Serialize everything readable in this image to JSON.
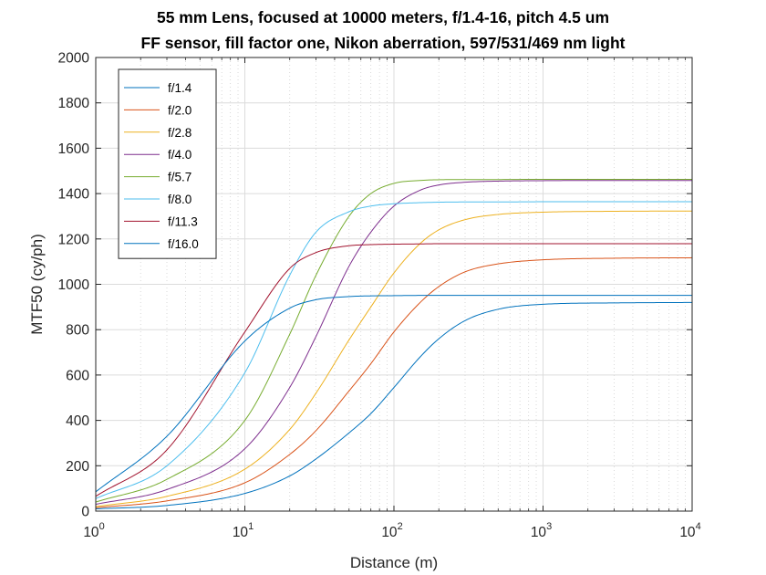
{
  "chart_data": {
    "type": "line",
    "title": "55 mm Lens, focused at 10000 meters, f/1.4-16, pitch 4.5 um",
    "subtitle": "FF sensor, fill factor one, Nikon aberration, 597/531/469 nm light",
    "xlabel": "Distance (m)",
    "ylabel": "MTF50 (cy/ph)",
    "x_scale": "log",
    "xlim": [
      1,
      10000
    ],
    "ylim": [
      0,
      2000
    ],
    "x_ticks": [
      {
        "base": "10",
        "exp": "0"
      },
      {
        "base": "10",
        "exp": "1"
      },
      {
        "base": "10",
        "exp": "2"
      },
      {
        "base": "10",
        "exp": "3"
      },
      {
        "base": "10",
        "exp": "4"
      }
    ],
    "y_ticks": [
      "0",
      "200",
      "400",
      "600",
      "800",
      "1000",
      "1200",
      "1400",
      "1600",
      "1800",
      "2000"
    ],
    "grid": true,
    "legend_position": "top-left",
    "series": [
      {
        "name": "f/1.4",
        "color": "#0072BD",
        "x": [
          1,
          3,
          10,
          20,
          30,
          50,
          70,
          100,
          150,
          200,
          300,
          500,
          1000,
          3000,
          10000
        ],
        "y": [
          10,
          25,
          78,
          155,
          230,
          345,
          430,
          545,
          680,
          760,
          840,
          890,
          912,
          918,
          920
        ]
      },
      {
        "name": "f/2.0",
        "color": "#D95319",
        "x": [
          1,
          3,
          10,
          20,
          30,
          50,
          70,
          100,
          150,
          200,
          300,
          500,
          1000,
          3000,
          10000
        ],
        "y": [
          15,
          45,
          125,
          250,
          355,
          530,
          650,
          790,
          920,
          990,
          1055,
          1090,
          1108,
          1115,
          1117
        ]
      },
      {
        "name": "f/2.8",
        "color": "#EDB120",
        "x": [
          1,
          3,
          10,
          20,
          30,
          50,
          70,
          100,
          150,
          200,
          300,
          500,
          1000,
          3000,
          10000
        ],
        "y": [
          20,
          65,
          185,
          360,
          520,
          755,
          900,
          1050,
          1180,
          1240,
          1285,
          1308,
          1318,
          1322,
          1323
        ]
      },
      {
        "name": "f/4.0",
        "color": "#7E2F8E",
        "x": [
          1,
          3,
          10,
          20,
          30,
          50,
          70,
          100,
          150,
          200,
          300,
          500,
          1000,
          3000,
          10000
        ],
        "y": [
          30,
          95,
          275,
          545,
          770,
          1080,
          1230,
          1345,
          1415,
          1438,
          1450,
          1455,
          1457,
          1458,
          1458
        ]
      },
      {
        "name": "f/5.7",
        "color": "#77AC30",
        "x": [
          1,
          3,
          10,
          20,
          30,
          50,
          70,
          100,
          150,
          200,
          300,
          500,
          1000,
          3000,
          10000
        ],
        "y": [
          40,
          140,
          400,
          780,
          1040,
          1300,
          1400,
          1445,
          1458,
          1461,
          1462,
          1462,
          1463,
          1463,
          1463
        ]
      },
      {
        "name": "f/8.0",
        "color": "#4DBEEE",
        "x": [
          1,
          3,
          10,
          20,
          30,
          50,
          70,
          100,
          150,
          200,
          300,
          500,
          1000,
          3000,
          10000
        ],
        "y": [
          55,
          200,
          610,
          1040,
          1230,
          1320,
          1345,
          1355,
          1360,
          1362,
          1363,
          1363,
          1364,
          1364,
          1364
        ]
      },
      {
        "name": "f/11.3",
        "color": "#A2142F",
        "x": [
          1,
          3,
          10,
          20,
          30,
          50,
          70,
          100,
          150,
          200,
          300,
          500,
          1000,
          3000,
          10000
        ],
        "y": [
          65,
          270,
          790,
          1070,
          1140,
          1170,
          1175,
          1177,
          1178,
          1179,
          1179,
          1179,
          1179,
          1179,
          1179
        ]
      },
      {
        "name": "f/16.0",
        "color": "#0072BD",
        "x": [
          1,
          3,
          10,
          20,
          30,
          50,
          70,
          100,
          150,
          200,
          300,
          500,
          1000,
          3000,
          10000
        ],
        "y": [
          85,
          330,
          750,
          895,
          932,
          946,
          949,
          950,
          951,
          951,
          951,
          951,
          951,
          951,
          951
        ]
      }
    ]
  }
}
